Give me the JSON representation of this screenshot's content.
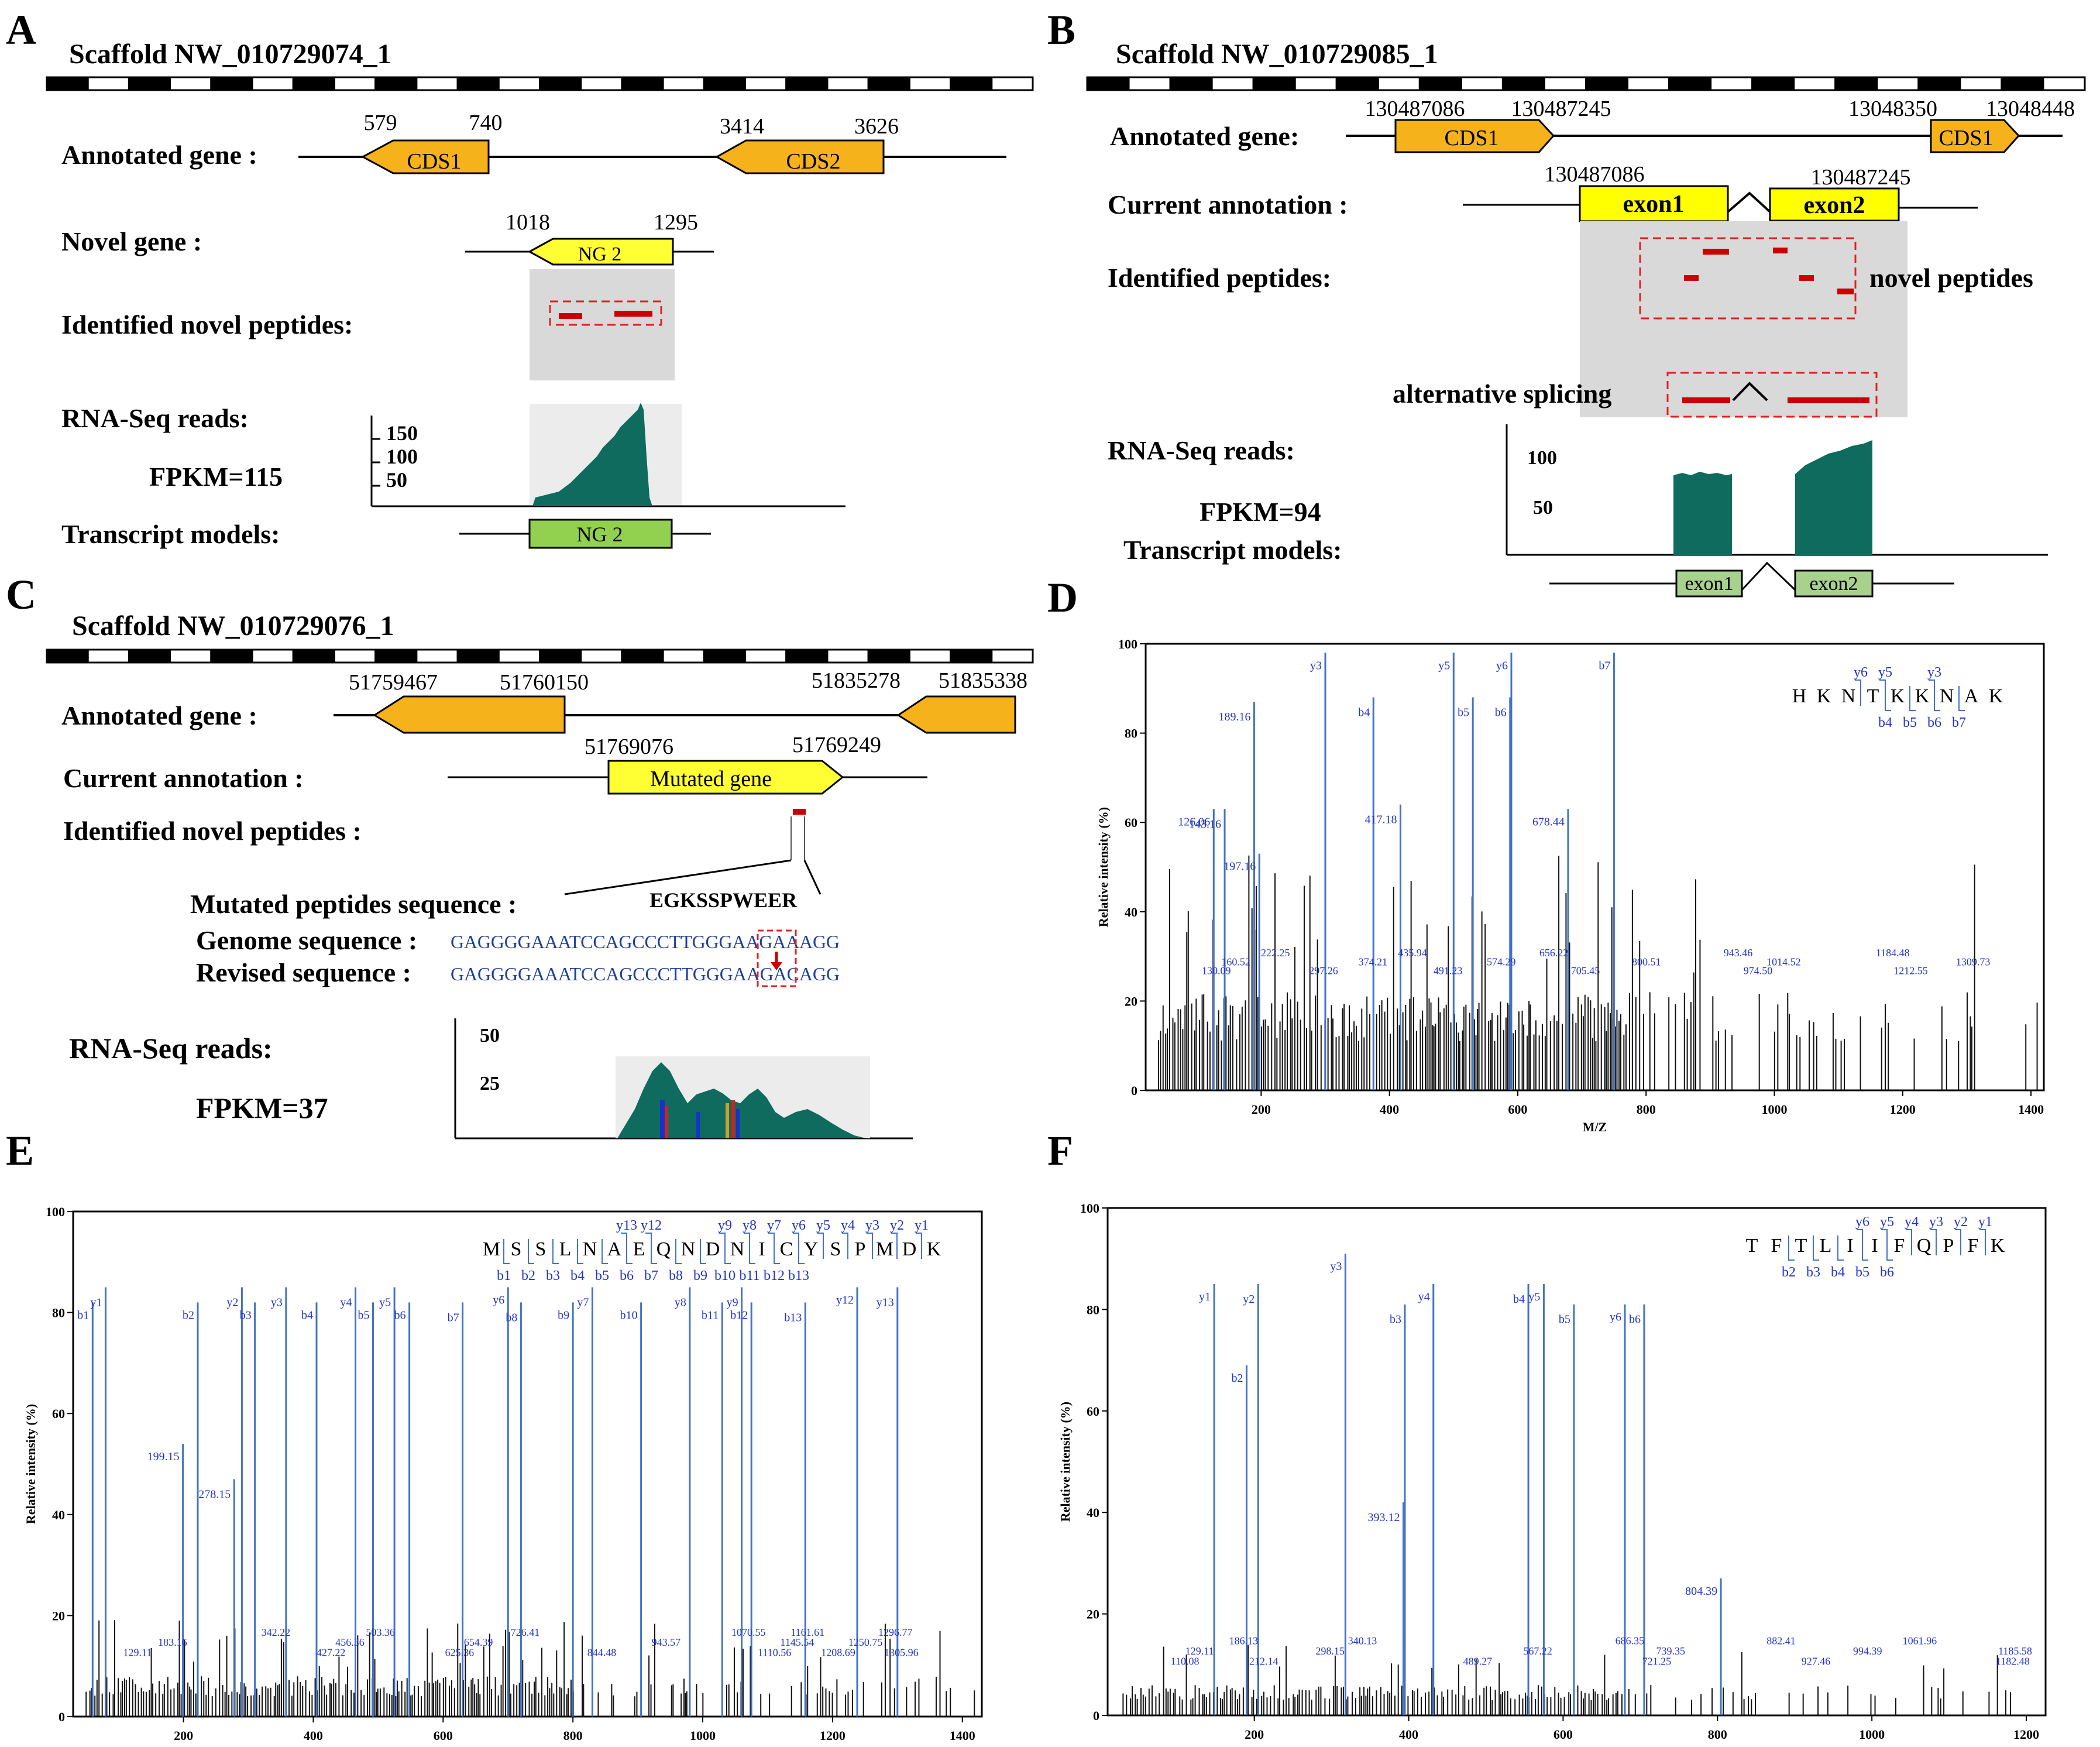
{
  "panels": {
    "A": {
      "letter": "A",
      "scaffold": "Scaffold NW_010729074_1",
      "rows": [
        "Annotated gene :",
        "Novel gene :",
        "Identified novel peptides:",
        "RNA-Seq reads:",
        "FPKM=115",
        "Transcript models:"
      ],
      "coords": [
        "579",
        "740",
        "3414",
        "3626",
        "1018",
        "1295"
      ],
      "cds": [
        "CDS1",
        "CDS2"
      ],
      "novel_gene": "NG 2",
      "yticks": [
        "150",
        "100",
        "50"
      ],
      "transcript": "NG 2"
    },
    "B": {
      "letter": "B",
      "scaffold": "Scaffold NW_010729085_1",
      "rows": [
        "Annotated gene:",
        "Current annotation :",
        "Identified peptides:",
        "RNA-Seq reads:",
        "FPKM=94",
        "Transcript models:"
      ],
      "coords": [
        "130487086",
        "130487245",
        "13048350",
        "13048448",
        "130487086",
        "130487245"
      ],
      "cds": [
        "CDS1",
        "CDS1"
      ],
      "exons": [
        "exon1",
        "exon2"
      ],
      "novel_peptides_label": "novel peptides",
      "alt_splicing_label": "alternative splicing",
      "yticks": [
        "100",
        "50"
      ],
      "transcript_exons": [
        "exon1",
        "exon2"
      ]
    },
    "C": {
      "letter": "C",
      "scaffold": "Scaffold NW_010729076_1",
      "rows": [
        "Annotated   gene  :",
        "Current annotation :",
        "Identified novel peptides :",
        "Mutated peptides sequence :",
        "Genome sequence :",
        "Revised  sequence :",
        "RNA-Seq reads:",
        "FPKM=37"
      ],
      "coords": [
        "51759467",
        "51760150",
        "51835278",
        "51835338",
        "51769076",
        "51769249"
      ],
      "mutated_gene": "Mutated gene",
      "peptide": "EGKSSPWEER",
      "genome_seq": "GAGGGGAAATCCAGCCCTTGGGAAGAAAGG",
      "revised_seq": "GAGGGGAAATCCAGCCCTTGGGAAGACAGG",
      "yticks": [
        "50",
        "25"
      ]
    },
    "D": {
      "letter": "D"
    },
    "E": {
      "letter": "E"
    },
    "F": {
      "letter": "F"
    }
  },
  "chart_data": [
    {
      "id": "D",
      "type": "bar",
      "title": "",
      "xlabel": "M/Z",
      "ylabel": "Relative intensity (%)",
      "xlim": [
        20,
        1420
      ],
      "ylim": [
        0,
        100
      ],
      "xticks": [
        200,
        400,
        600,
        800,
        1000,
        1200,
        1400
      ],
      "yticks": [
        0,
        20,
        40,
        60,
        80,
        100
      ],
      "sequence": [
        "H",
        "K",
        "N",
        "T",
        "K",
        "K",
        "N",
        "A",
        "K"
      ],
      "b_ions": [
        "b4",
        "b5",
        "b6",
        "b7"
      ],
      "y_ions": [
        "y6",
        "y5",
        "y3"
      ],
      "labeled_peaks": [
        {
          "mz": 300,
          "int": 98,
          "label": "y3",
          "blue": true
        },
        {
          "mz": 375,
          "int": 88,
          "label": "b4",
          "blue": true
        },
        {
          "mz": 500,
          "int": 98,
          "label": "y5",
          "blue": true
        },
        {
          "mz": 530,
          "int": 88,
          "label": "b5",
          "blue": true
        },
        {
          "mz": 590,
          "int": 98,
          "label": "y6",
          "blue": true
        },
        {
          "mz": 588,
          "int": 88,
          "label": "b6",
          "blue": true
        },
        {
          "mz": 750,
          "int": 98,
          "label": "b7",
          "blue": true
        },
        {
          "mz": 189.16,
          "int": 87,
          "label": "189.16",
          "blue": true
        },
        {
          "mz": 126.06,
          "int": 63,
          "label": "126.06",
          "blue": true
        },
        {
          "mz": 143.16,
          "int": 63,
          "label": "143.16",
          "blue": true
        },
        {
          "mz": 197.16,
          "int": 53,
          "label": "197.16",
          "blue": true
        },
        {
          "mz": 417.18,
          "int": 64,
          "label": "417.18",
          "blue": true
        },
        {
          "mz": 678.44,
          "int": 63,
          "label": "678.44",
          "blue": true
        }
      ],
      "noise_labels": [
        {
          "mz": 130.09,
          "label": "130.09"
        },
        {
          "mz": 160.52,
          "label": "160.52"
        },
        {
          "mz": 222.25,
          "label": "222.25"
        },
        {
          "mz": 297.26,
          "label": "297.26"
        },
        {
          "mz": 374.21,
          "label": "374.21"
        },
        {
          "mz": 435.94,
          "label": "435.94"
        },
        {
          "mz": 491.23,
          "label": "491.23"
        },
        {
          "mz": 574.29,
          "label": "574.29"
        },
        {
          "mz": 656.22,
          "label": "656.22"
        },
        {
          "mz": 705.45,
          "label": "705.45"
        },
        {
          "mz": 800.51,
          "label": "800.51"
        },
        {
          "mz": 943.46,
          "label": "943.46"
        },
        {
          "mz": 974.5,
          "label": "974.50"
        },
        {
          "mz": 1014.52,
          "label": "1014.52"
        },
        {
          "mz": 1184.48,
          "label": "1184.48"
        },
        {
          "mz": 1212.55,
          "label": "1212.55"
        },
        {
          "mz": 1309.73,
          "label": "1309.73"
        }
      ],
      "noise_level": 22
    },
    {
      "id": "E",
      "type": "bar",
      "title": "",
      "xlabel": "M/Z",
      "ylabel": "Relative intensity (%)",
      "xlim": [
        30,
        1430
      ],
      "ylim": [
        0,
        100
      ],
      "xticks": [
        200,
        400,
        600,
        800,
        1000,
        1200,
        1400
      ],
      "yticks": [
        0,
        20,
        40,
        60,
        80,
        100
      ],
      "sequence": [
        "M",
        "S",
        "S",
        "L",
        "N",
        "A",
        "E",
        "Q",
        "N",
        "D",
        "N",
        "I",
        "C",
        "Y",
        "S",
        "P",
        "M",
        "D",
        "K"
      ],
      "b_ions": [
        "b1",
        "b2",
        "b3",
        "b4",
        "b5",
        "b6",
        "b7",
        "b8",
        "b9",
        "b10",
        "b11",
        "b12",
        "b13"
      ],
      "y_ions": [
        "y13",
        "y12",
        "y9",
        "y8",
        "y7",
        "y6",
        "y5",
        "y4",
        "y3",
        "y2",
        "y1"
      ],
      "labeled_peaks": [
        {
          "mz": 60,
          "int": 82,
          "label": "b1",
          "blue": true
        },
        {
          "mz": 80,
          "int": 85,
          "label": "y1",
          "blue": true
        },
        {
          "mz": 222,
          "int": 82,
          "label": "b2",
          "blue": true
        },
        {
          "mz": 290,
          "int": 85,
          "label": "y2",
          "blue": true
        },
        {
          "mz": 310,
          "int": 82,
          "label": "b3",
          "blue": true
        },
        {
          "mz": 358,
          "int": 85,
          "label": "y3",
          "blue": true
        },
        {
          "mz": 405,
          "int": 82,
          "label": "b4",
          "blue": true
        },
        {
          "mz": 465,
          "int": 85,
          "label": "y4",
          "blue": true
        },
        {
          "mz": 492,
          "int": 82,
          "label": "b5",
          "blue": true
        },
        {
          "mz": 525,
          "int": 85,
          "label": "y5",
          "blue": true
        },
        {
          "mz": 548,
          "int": 82,
          "label": "b6",
          "blue": true
        },
        {
          "mz": 630,
          "int": 82,
          "label": "b7",
          "blue": true
        },
        {
          "mz": 700,
          "int": 85,
          "label": "y6",
          "blue": true
        },
        {
          "mz": 720,
          "int": 82,
          "label": "b8",
          "blue": true
        },
        {
          "mz": 800,
          "int": 82,
          "label": "b9",
          "blue": true
        },
        {
          "mz": 830,
          "int": 85,
          "label": "y7",
          "blue": true
        },
        {
          "mz": 905,
          "int": 82,
          "label": "b10",
          "blue": true
        },
        {
          "mz": 980,
          "int": 85,
          "label": "y8",
          "blue": true
        },
        {
          "mz": 1030,
          "int": 82,
          "label": "b11",
          "blue": true
        },
        {
          "mz": 1060,
          "int": 85,
          "label": "y9",
          "blue": true
        },
        {
          "mz": 1075,
          "int": 82,
          "label": "b12",
          "blue": true
        },
        {
          "mz": 1158,
          "int": 82,
          "label": "b13",
          "blue": true
        },
        {
          "mz": 1238,
          "int": 85,
          "label": "y12",
          "blue": true
        },
        {
          "mz": 1300,
          "int": 85,
          "label": "y13",
          "blue": true
        },
        {
          "mz": 199.15,
          "int": 54,
          "label": "199.15",
          "blue": true
        },
        {
          "mz": 278.15,
          "int": 47,
          "label": "278.15",
          "blue": true
        }
      ],
      "noise_labels": [
        {
          "mz": 129.11,
          "label": "129.11"
        },
        {
          "mz": 183.16,
          "label": "183.16"
        },
        {
          "mz": 342.22,
          "label": "342.22"
        },
        {
          "mz": 427.22,
          "label": "427.22"
        },
        {
          "mz": 456.36,
          "label": "456.36"
        },
        {
          "mz": 503.36,
          "label": "503.36"
        },
        {
          "mz": 625.36,
          "label": "625.36"
        },
        {
          "mz": 654.39,
          "label": "654.39"
        },
        {
          "mz": 726.41,
          "label": "726.41"
        },
        {
          "mz": 844.48,
          "label": "844.48"
        },
        {
          "mz": 943.57,
          "label": "943.57"
        },
        {
          "mz": 1070.55,
          "label": "1070.55"
        },
        {
          "mz": 1110.56,
          "label": "1110.56"
        },
        {
          "mz": 1145.54,
          "label": "1145.54"
        },
        {
          "mz": 1161.61,
          "label": "1161.61"
        },
        {
          "mz": 1208.69,
          "label": "1208.69"
        },
        {
          "mz": 1250.75,
          "label": "1250.75"
        },
        {
          "mz": 1296.77,
          "label": "1296.77"
        },
        {
          "mz": 1305.96,
          "label": "1305.96"
        }
      ],
      "noise_level": 8
    },
    {
      "id": "F",
      "type": "bar",
      "title": "",
      "xlabel": "M/Z",
      "ylabel": "Relative intensity (%)",
      "xlim": [
        10,
        1225
      ],
      "ylim": [
        0,
        100
      ],
      "xticks": [
        200,
        400,
        600,
        800,
        1000,
        1200
      ],
      "yticks": [
        0,
        20,
        40,
        60,
        80,
        100
      ],
      "sequence": [
        "T",
        "F",
        "T",
        "L",
        "I",
        "I",
        "F",
        "Q",
        "P",
        "F",
        "K"
      ],
      "b_ions": [
        "b2",
        "b3",
        "b4",
        "b5",
        "b6"
      ],
      "y_ions": [
        "y6",
        "y5",
        "y4",
        "y3",
        "y2",
        "y1"
      ],
      "labeled_peaks": [
        {
          "mz": 148,
          "int": 85,
          "label": "y1",
          "blue": true
        },
        {
          "mz": 205,
          "int": 85,
          "label": "y2",
          "blue": true
        },
        {
          "mz": 318,
          "int": 91,
          "label": "y3",
          "blue": true
        },
        {
          "mz": 395,
          "int": 81,
          "label": "b3",
          "blue": true
        },
        {
          "mz": 432,
          "int": 85,
          "label": "y4",
          "blue": true
        },
        {
          "mz": 555,
          "int": 85,
          "label": "b4",
          "blue": true
        },
        {
          "mz": 575,
          "int": 85,
          "label": "y5",
          "blue": true
        },
        {
          "mz": 614,
          "int": 81,
          "label": "b5",
          "blue": true
        },
        {
          "mz": 680,
          "int": 81,
          "label": "y6",
          "blue": true
        },
        {
          "mz": 705,
          "int": 81,
          "label": "b6",
          "blue": true
        },
        {
          "mz": 190,
          "int": 69,
          "label": "b2",
          "blue": true
        },
        {
          "mz": 393.12,
          "int": 42,
          "label": "393.12",
          "blue": true
        },
        {
          "mz": 804.39,
          "int": 27,
          "label": "804.39",
          "blue": true
        }
      ],
      "noise_labels": [
        {
          "mz": 110.08,
          "label": "110.08"
        },
        {
          "mz": 129.11,
          "label": "129.11"
        },
        {
          "mz": 186.13,
          "label": "186.13"
        },
        {
          "mz": 212.14,
          "label": "212.14"
        },
        {
          "mz": 298.15,
          "label": "298.15"
        },
        {
          "mz": 340.13,
          "label": "340.13"
        },
        {
          "mz": 489.27,
          "label": "489.27"
        },
        {
          "mz": 567.22,
          "label": "567.22"
        },
        {
          "mz": 686.35,
          "label": "686.35"
        },
        {
          "mz": 721.25,
          "label": "721.25"
        },
        {
          "mz": 739.35,
          "label": "739.35"
        },
        {
          "mz": 882.41,
          "label": "882.41"
        },
        {
          "mz": 927.46,
          "label": "927.46"
        },
        {
          "mz": 994.39,
          "label": "994.39"
        },
        {
          "mz": 1061.96,
          "label": "1061.96"
        },
        {
          "mz": 1182.48,
          "label": "1182.48"
        },
        {
          "mz": 1185.58,
          "label": "1185.58"
        }
      ],
      "noise_level": 6
    }
  ]
}
